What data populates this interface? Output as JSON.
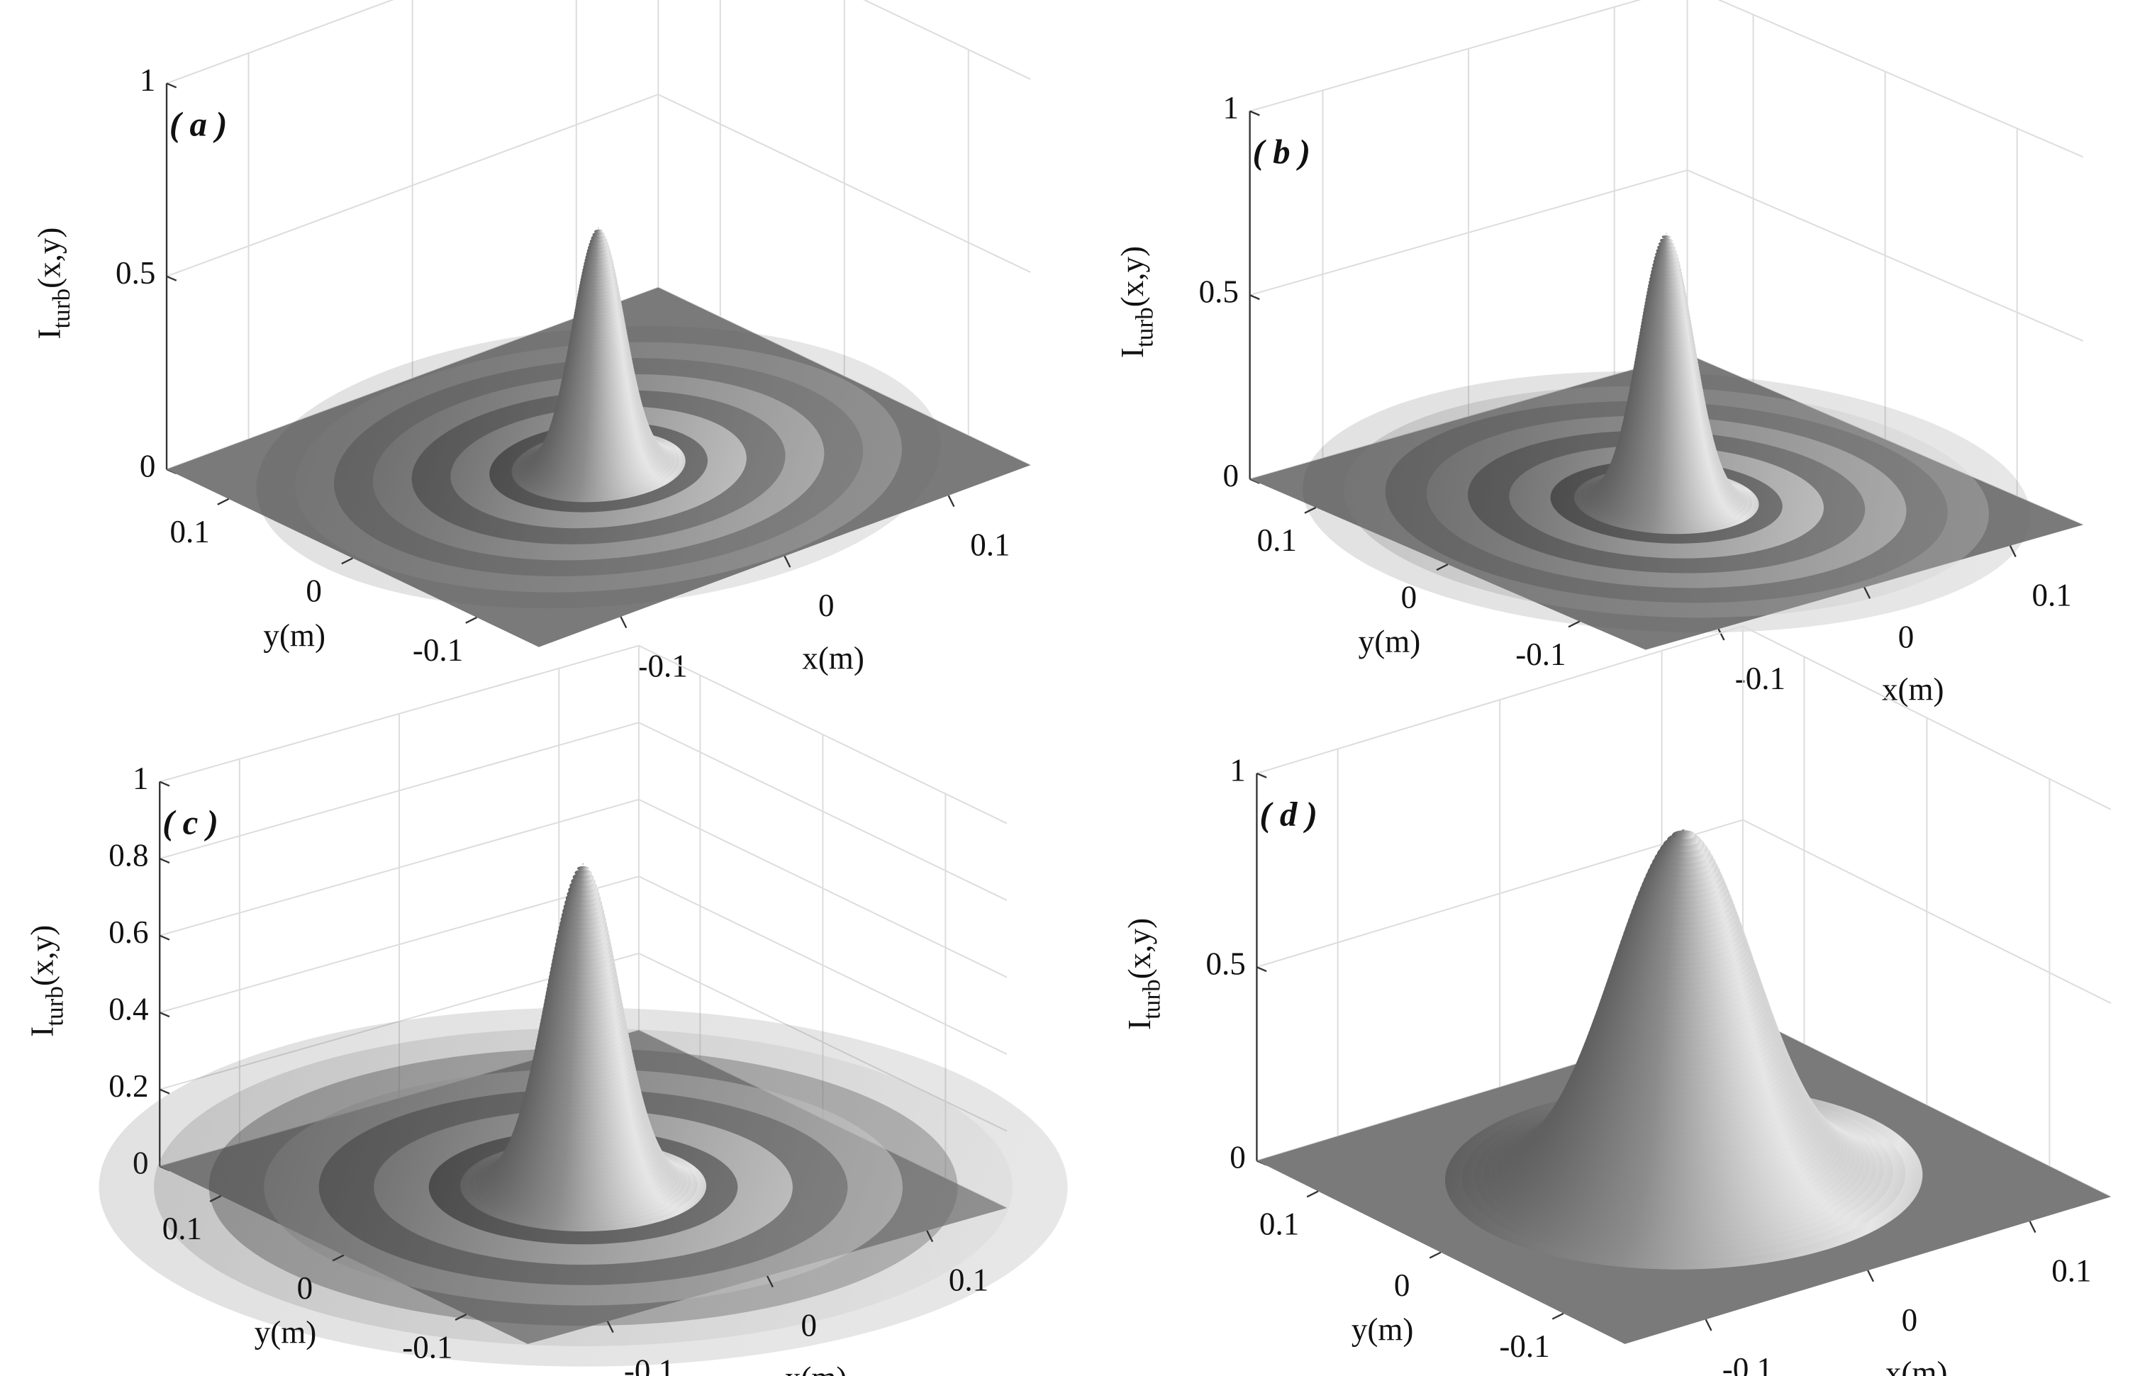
{
  "chart_data": [
    {
      "type": "surface",
      "panel_label": "( a )",
      "xlabel": "x(m)",
      "ylabel": "y(m)",
      "zlabel": {
        "main": "I",
        "sub": "turb",
        "tail": "(x,y)"
      },
      "xlim": [
        -0.15,
        0.15
      ],
      "ylim": [
        -0.15,
        0.15
      ],
      "zlim": [
        0,
        1
      ],
      "xticks": [
        -0.1,
        0,
        0.1
      ],
      "yticks": [
        -0.1,
        0,
        0.1
      ],
      "zticks": [
        0,
        0.5,
        1
      ],
      "peak": 0.62,
      "width": 0.018,
      "rings": true,
      "color": "#7a7a7a",
      "grid": true
    },
    {
      "type": "surface",
      "panel_label": "( b )",
      "xlabel": "x(m)",
      "ylabel": "y(m)",
      "zlabel": {
        "main": "I",
        "sub": "turb",
        "tail": "(x,y)"
      },
      "xlim": [
        -0.15,
        0.15
      ],
      "ylim": [
        -0.15,
        0.15
      ],
      "zlim": [
        0,
        1
      ],
      "xticks": [
        -0.1,
        0,
        0.1
      ],
      "yticks": [
        -0.1,
        0,
        0.1
      ],
      "zticks": [
        0,
        0.5,
        1
      ],
      "peak": 0.73,
      "width": 0.02,
      "rings": true,
      "color": "#7a7a7a",
      "grid": true
    },
    {
      "type": "surface",
      "panel_label": "( c )",
      "xlabel": "x(m)",
      "ylabel": "y(m)",
      "zlabel": {
        "main": "I",
        "sub": "turb",
        "tail": "(x,y)"
      },
      "xlim": [
        -0.15,
        0.15
      ],
      "ylim": [
        -0.15,
        0.15
      ],
      "zlim": [
        0,
        1
      ],
      "xticks": [
        -0.1,
        0,
        0.1
      ],
      "yticks": [
        -0.1,
        0,
        0.1
      ],
      "zticks": [
        0,
        0.2,
        0.4,
        0.6,
        0.8,
        1
      ],
      "peak": 0.84,
      "width": 0.026,
      "rings": true,
      "color": "#7a7a7a",
      "grid": true
    },
    {
      "type": "surface",
      "panel_label": "( d )",
      "xlabel": "x(m)",
      "ylabel": "y(m)",
      "zlabel": {
        "main": "I",
        "sub": "turb",
        "tail": "(x,y)"
      },
      "xlim": [
        -0.15,
        0.15
      ],
      "ylim": [
        -0.15,
        0.15
      ],
      "zlim": [
        0,
        1
      ],
      "xticks": [
        -0.1,
        0,
        0.1
      ],
      "yticks": [
        -0.1,
        0,
        0.1
      ],
      "zticks": [
        0,
        0.5,
        1
      ],
      "peak": 0.9,
      "width": 0.05,
      "rings": false,
      "color": "#7a7a7a",
      "grid": true
    }
  ]
}
